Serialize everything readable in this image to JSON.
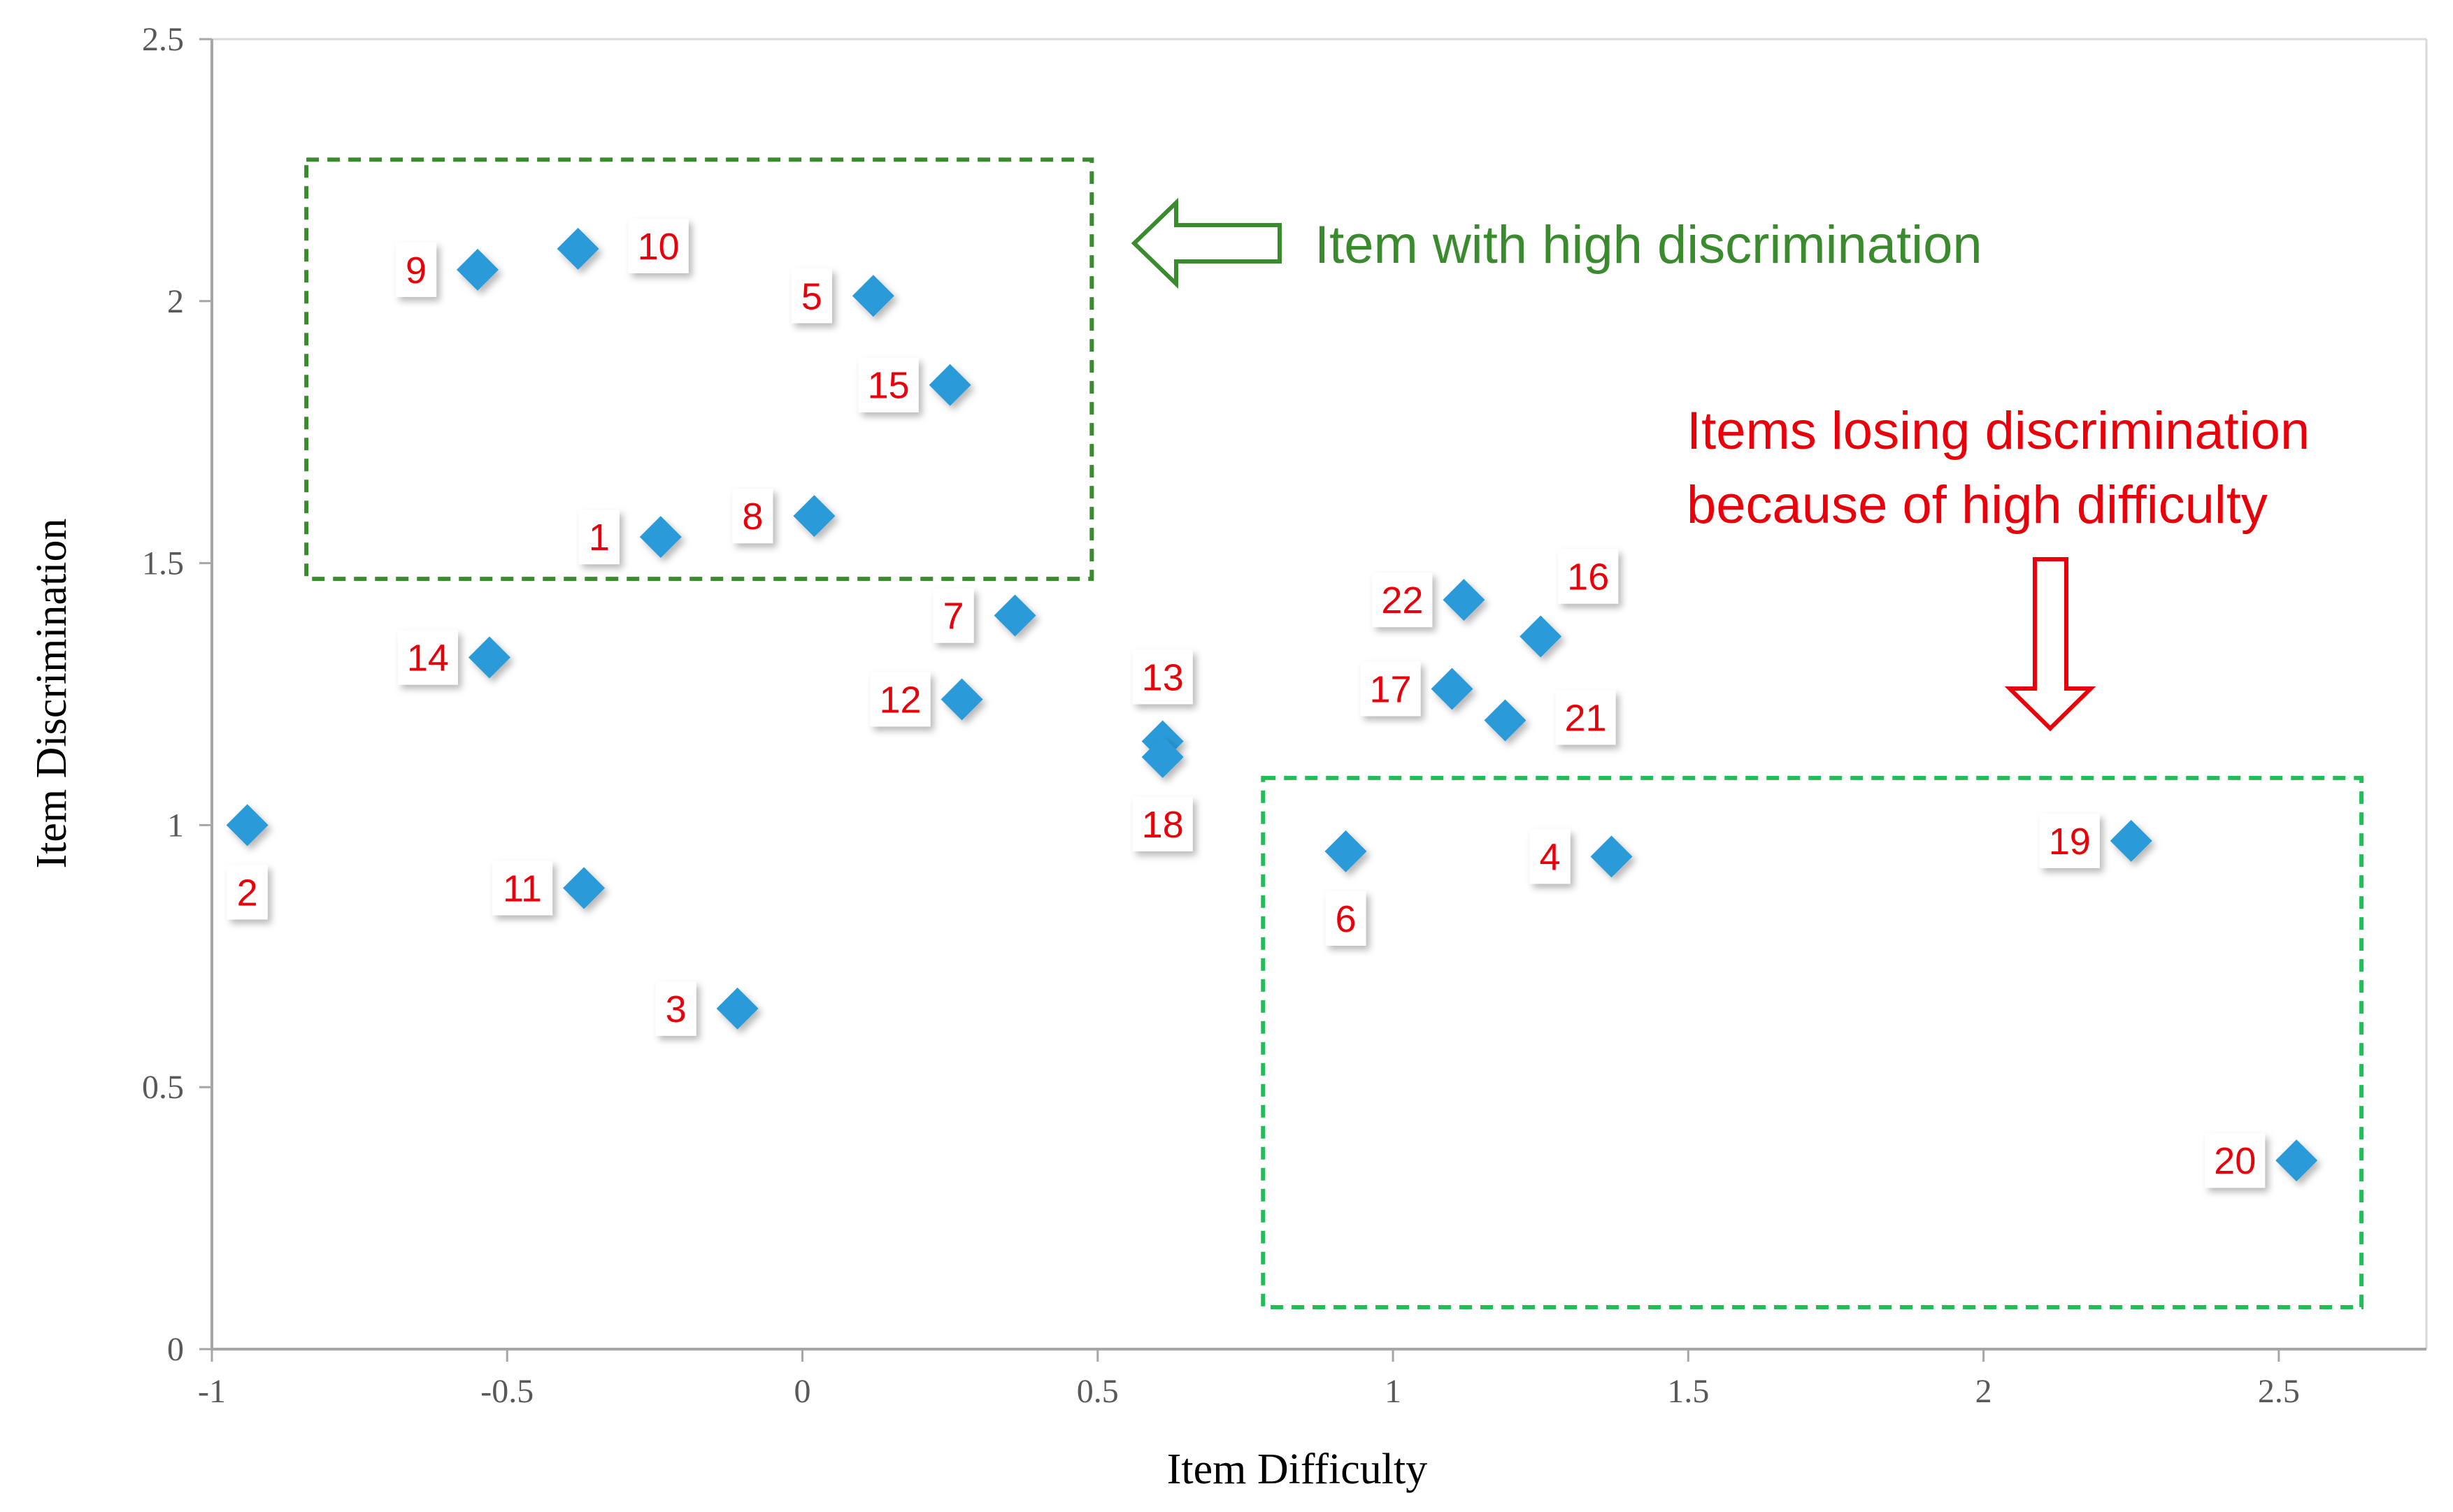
{
  "chart_data": {
    "type": "scatter",
    "xlabel": "Item Difficulty",
    "ylabel": "Item Discrimination",
    "xlim": [
      -1,
      2.75
    ],
    "ylim": [
      0,
      2.5
    ],
    "x_ticks": [
      "-1",
      "-0.5",
      "0",
      "0.5",
      "1",
      "1.5",
      "2",
      "2.5"
    ],
    "y_ticks": [
      "0",
      "0.5",
      "1",
      "1.5",
      "2",
      "2.5"
    ],
    "marker_color": "#2a9ad8",
    "label_color": "#e8000b",
    "points": [
      {
        "label": "1",
        "x": -0.24,
        "y": 1.55,
        "label_pos": "left"
      },
      {
        "label": "2",
        "x": -0.94,
        "y": 1.0,
        "label_pos": "below"
      },
      {
        "label": "3",
        "x": -0.11,
        "y": 0.65,
        "label_pos": "left"
      },
      {
        "label": "4",
        "x": 1.37,
        "y": 0.94,
        "label_pos": "left"
      },
      {
        "label": "5",
        "x": 0.12,
        "y": 2.01,
        "label_pos": "left"
      },
      {
        "label": "6",
        "x": 0.92,
        "y": 0.95,
        "label_pos": "below"
      },
      {
        "label": "7",
        "x": 0.36,
        "y": 1.4,
        "label_pos": "left"
      },
      {
        "label": "8",
        "x": 0.02,
        "y": 1.59,
        "label_pos": "left"
      },
      {
        "label": "9",
        "x": -0.55,
        "y": 2.06,
        "label_pos": "left"
      },
      {
        "label": "10",
        "x": -0.38,
        "y": 2.1,
        "label_pos": "right"
      },
      {
        "label": "11",
        "x": -0.37,
        "y": 0.88,
        "label_pos": "left"
      },
      {
        "label": "12",
        "x": 0.27,
        "y": 1.24,
        "label_pos": "left"
      },
      {
        "label": "13",
        "x": 0.61,
        "y": 1.16,
        "label_pos": "above"
      },
      {
        "label": "14",
        "x": -0.53,
        "y": 1.32,
        "label_pos": "left"
      },
      {
        "label": "15",
        "x": 0.25,
        "y": 1.84,
        "label_pos": "left"
      },
      {
        "label": "16",
        "x": 1.25,
        "y": 1.36,
        "label_pos": "above-right"
      },
      {
        "label": "17",
        "x": 1.1,
        "y": 1.26,
        "label_pos": "left"
      },
      {
        "label": "18",
        "x": 0.61,
        "y": 1.13,
        "label_pos": "below"
      },
      {
        "label": "19",
        "x": 2.25,
        "y": 0.97,
        "label_pos": "left"
      },
      {
        "label": "20",
        "x": 2.53,
        "y": 0.36,
        "label_pos": "left"
      },
      {
        "label": "21",
        "x": 1.19,
        "y": 1.2,
        "label_pos": "right"
      },
      {
        "label": "22",
        "x": 1.12,
        "y": 1.43,
        "label_pos": "left"
      }
    ],
    "regions": [
      {
        "name": "high-discrimination",
        "x_range": [
          -0.84,
          0.49
        ],
        "y_range": [
          1.47,
          2.27
        ],
        "color": "#3a8a2e"
      },
      {
        "name": "high-difficulty",
        "x_range": [
          0.78,
          2.64
        ],
        "y_range": [
          0.08,
          1.09
        ],
        "color": "#1fbf55"
      }
    ],
    "annotations": [
      {
        "name": "high-discrimination-note",
        "lines": [
          "Item with high discrimination"
        ],
        "color": "#3a8a2e"
      },
      {
        "name": "high-difficulty-note",
        "lines": [
          "Items losing discrimination",
          "because of high difficulty"
        ],
        "color": "#e8000b"
      }
    ]
  }
}
